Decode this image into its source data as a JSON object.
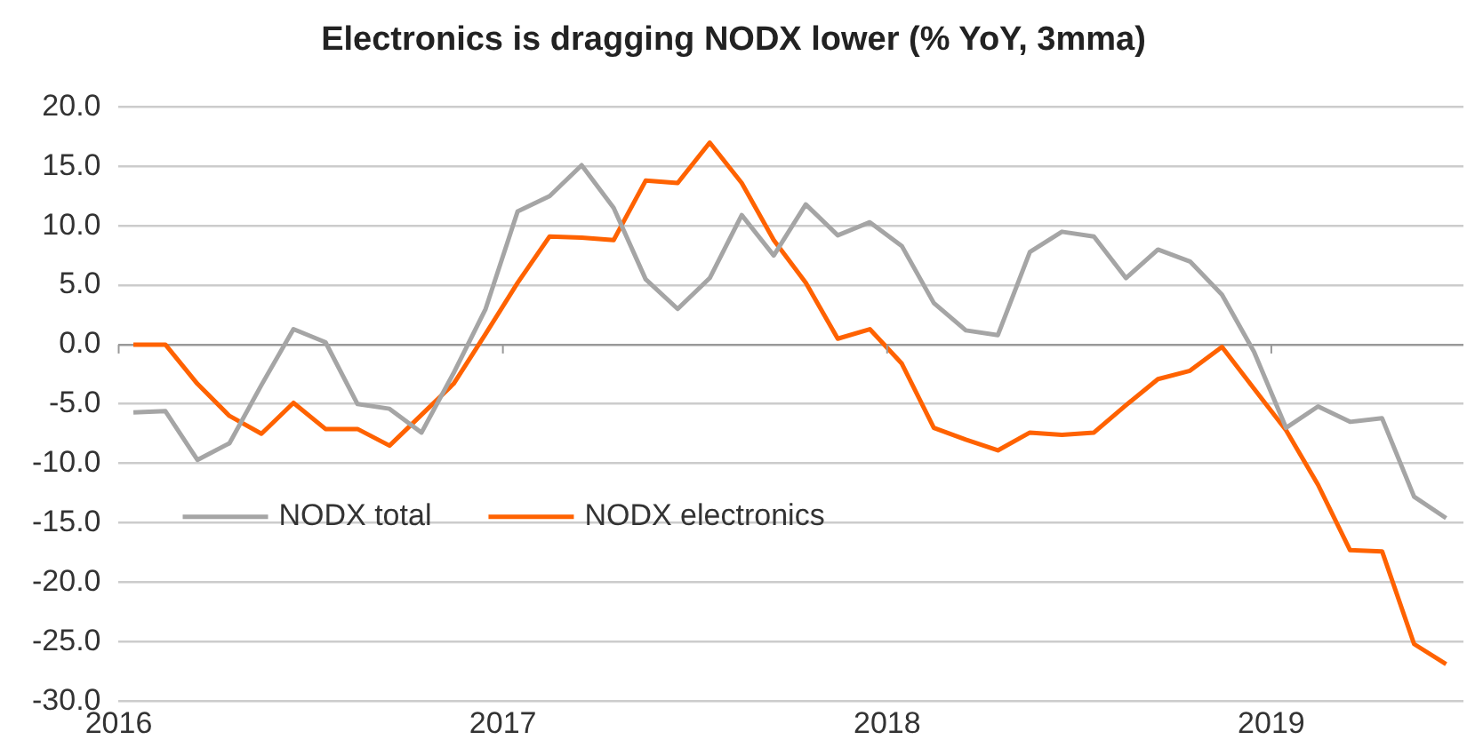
{
  "chart_data": {
    "type": "line",
    "title": "Electronics is dragging NODX lower (% YoY, 3mma)",
    "x": [
      "2016-01-15",
      "2016-02-15",
      "2016-03-15",
      "2016-04-15",
      "2016-05-15",
      "2016-06-15",
      "2016-07-15",
      "2016-08-15",
      "2016-09-15",
      "2016-10-15",
      "2016-11-15",
      "2016-12-15",
      "2017-01-15",
      "2017-02-15",
      "2017-03-15",
      "2017-04-15",
      "2017-05-15",
      "2017-06-15",
      "2017-07-15",
      "2017-08-15",
      "2017-09-15",
      "2017-10-15",
      "2017-11-15",
      "2017-12-15",
      "2018-01-15",
      "2018-02-15",
      "2018-03-15",
      "2018-04-15",
      "2018-05-15",
      "2018-06-15",
      "2018-07-15",
      "2018-08-15",
      "2018-09-15",
      "2018-10-15",
      "2018-11-15",
      "2018-12-15",
      "2019-01-15",
      "2019-02-15",
      "2019-03-15",
      "2019-04-15",
      "2019-05-15",
      "2019-06-15"
    ],
    "series": [
      {
        "name": "NODX total",
        "color": "#a5a5a5",
        "values": [
          -5.7,
          -5.6,
          -9.7,
          -8.3,
          -3.4,
          1.3,
          0.2,
          -5.0,
          -5.4,
          -7.4,
          -2.4,
          3.0,
          11.2,
          12.5,
          15.1,
          11.5,
          5.5,
          3.0,
          5.6,
          10.9,
          7.5,
          11.8,
          9.2,
          10.3,
          8.3,
          3.5,
          1.2,
          0.8,
          7.8,
          9.5,
          9.1,
          5.6,
          8.0,
          7.0,
          4.2,
          -0.6,
          -7.0,
          -5.2,
          -6.5,
          -6.2,
          -12.8,
          -14.6
        ]
      },
      {
        "name": "NODX electronics",
        "color": "#ff6200",
        "values": [
          0,
          0,
          -3.3,
          -6.0,
          -7.5,
          -4.9,
          -7.1,
          -7.1,
          -8.5,
          -5.9,
          -3.3,
          0.9,
          5.2,
          9.1,
          9.0,
          8.8,
          13.8,
          13.6,
          17.0,
          13.6,
          8.8,
          5.2,
          0.5,
          1.3,
          -1.6,
          -7.0,
          -8.0,
          -8.9,
          -7.4,
          -7.6,
          -7.4,
          -5.1,
          -2.9,
          -2.2,
          -0.2,
          -3.7,
          -7.2,
          -11.8,
          -17.3,
          -17.4,
          -25.2,
          -26.9
        ]
      }
    ],
    "xlim": [
      "2016",
      "2019-07"
    ],
    "xticks": [
      {
        "value": "2016",
        "label": "2016"
      },
      {
        "value": "2017",
        "label": "2017"
      },
      {
        "value": "2018",
        "label": "2018"
      },
      {
        "value": "2019",
        "label": "2019"
      }
    ],
    "ylim": [
      -30,
      20
    ],
    "yticks": [
      {
        "value": -30,
        "label": "-30.0"
      },
      {
        "value": -25,
        "label": "-25.0"
      },
      {
        "value": -20,
        "label": "-20.0"
      },
      {
        "value": -15,
        "label": "-15.0"
      },
      {
        "value": -10,
        "label": "-10.0"
      },
      {
        "value": -5,
        "label": "-5.0"
      },
      {
        "value": 0,
        "label": "0.0"
      },
      {
        "value": 5,
        "label": "5.0"
      },
      {
        "value": 10,
        "label": "10.0"
      },
      {
        "value": 15,
        "label": "15.0"
      },
      {
        "value": 20,
        "label": "20.0"
      }
    ],
    "grid": "y",
    "legend": "bottom left",
    "marker": "none",
    "line_style": "solid"
  }
}
